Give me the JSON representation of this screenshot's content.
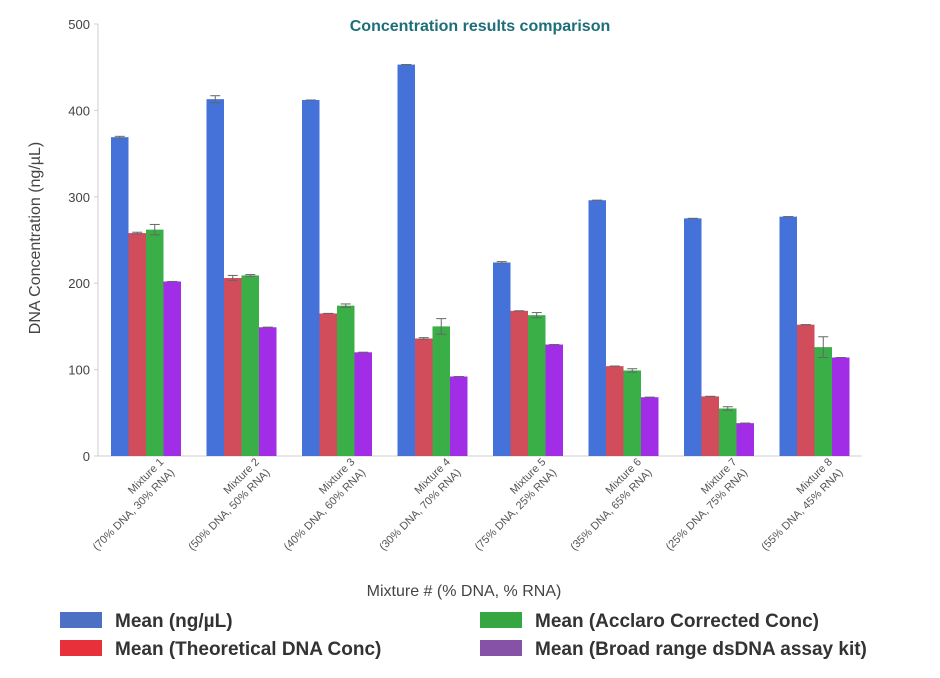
{
  "chart_data": {
    "type": "bar",
    "title": "Concentration results comparison",
    "xlabel": "Mixture # (% DNA, % RNA)",
    "ylabel": "DNA Concentration (ng/µL)",
    "ylim": [
      0,
      500
    ],
    "yticks": [
      0,
      100,
      200,
      300,
      400,
      500
    ],
    "grid": false,
    "legend_position": "bottom",
    "categories": [
      {
        "line1": "Mixture 1",
        "line2": "(70% DNA, 30% RNA)"
      },
      {
        "line1": "Mixture 2",
        "line2": "(50% DNA, 50% RNA)"
      },
      {
        "line1": "Mixture 3",
        "line2": "(40% DNA, 60% RNA)"
      },
      {
        "line1": "Mixture 4",
        "line2": "(30% DNA, 70% RNA)"
      },
      {
        "line1": "Mixture 5",
        "line2": "(75% DNA, 25% RNA)"
      },
      {
        "line1": "Mixture 6",
        "line2": "(35% DNA, 65% RNA)"
      },
      {
        "line1": "Mixture 7",
        "line2": "(25% DNA, 75% RNA)"
      },
      {
        "line1": "Mixture 8",
        "line2": "(55% DNA, 45% RNA)"
      }
    ],
    "series": [
      {
        "name": "Mean (ng/µL)",
        "color": "#4472d9",
        "legend_color": "#4c70c4",
        "values": [
          369,
          413,
          412,
          453,
          224,
          296,
          275,
          277
        ],
        "errors": [
          1,
          4,
          0,
          0,
          1,
          0,
          0,
          0
        ]
      },
      {
        "name": "Mean (Theoretical DNA Conc)",
        "color": "#d14d5c",
        "legend_color": "#e8303a",
        "values": [
          258,
          206,
          165,
          136,
          168,
          104,
          69,
          152
        ],
        "errors": [
          1,
          3,
          0,
          1,
          0,
          0,
          0,
          0
        ]
      },
      {
        "name": "Mean (Acclaro Corrected Conc)",
        "color": "#3aae47",
        "legend_color": "#36a640",
        "values": [
          262,
          209,
          174,
          150,
          163,
          99,
          55,
          126
        ],
        "errors": [
          6,
          1,
          2,
          9,
          3,
          2,
          2,
          12
        ]
      },
      {
        "name": "Mean (Broad range dsDNA assay kit)",
        "color": "#a12de6",
        "legend_color": "#8652a8",
        "values": [
          202,
          149,
          120,
          92,
          129,
          68,
          38,
          114
        ],
        "errors": [
          0,
          0,
          0,
          0,
          0,
          0,
          0,
          0
        ]
      }
    ]
  }
}
